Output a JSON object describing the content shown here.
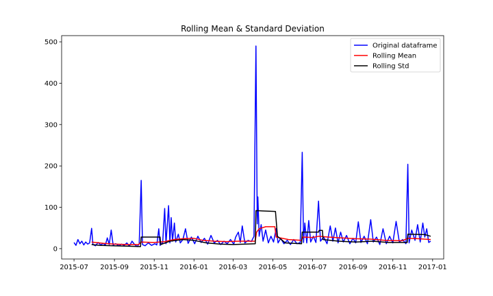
{
  "chart_data": {
    "type": "line",
    "title": "Rolling Mean & Standard Deviation",
    "xlabel": "",
    "ylabel": "",
    "xlim": [
      "2015-06-12",
      "2017-01-18"
    ],
    "ylim": [
      -25,
      515
    ],
    "x_ticks": [
      "2015-07-01",
      "2015-09-01",
      "2015-11-01",
      "2016-01-01",
      "2016-03-01",
      "2016-05-01",
      "2016-07-01",
      "2016-09-01",
      "2016-11-01",
      "2017-01-01"
    ],
    "x_tick_labels": [
      "2015-07",
      "2015-09",
      "2015-11",
      "2016-01",
      "2016-03",
      "2016-05",
      "2016-07",
      "2016-09",
      "2016-11",
      "2017-01"
    ],
    "y_ticks": [
      0,
      100,
      200,
      300,
      400,
      500
    ],
    "y_tick_labels": [
      "0",
      "100",
      "200",
      "300",
      "400",
      "500"
    ],
    "grid": false,
    "legend_position": "top-right",
    "series": [
      {
        "name": "Original dataframe",
        "color": "#0000ff",
        "points": [
          [
            "2015-07-01",
            15
          ],
          [
            "2015-07-04",
            8
          ],
          [
            "2015-07-07",
            22
          ],
          [
            "2015-07-10",
            12
          ],
          [
            "2015-07-13",
            18
          ],
          [
            "2015-07-16",
            9
          ],
          [
            "2015-07-19",
            16
          ],
          [
            "2015-07-22",
            11
          ],
          [
            "2015-07-25",
            14
          ],
          [
            "2015-07-28",
            49
          ],
          [
            "2015-07-30",
            10
          ],
          [
            "2015-08-03",
            7
          ],
          [
            "2015-08-07",
            15
          ],
          [
            "2015-08-11",
            9
          ],
          [
            "2015-08-15",
            13
          ],
          [
            "2015-08-18",
            8
          ],
          [
            "2015-08-21",
            26
          ],
          [
            "2015-08-24",
            10
          ],
          [
            "2015-08-27",
            45
          ],
          [
            "2015-08-30",
            9
          ],
          [
            "2015-09-03",
            12
          ],
          [
            "2015-09-08",
            7
          ],
          [
            "2015-09-12",
            11
          ],
          [
            "2015-09-16",
            8
          ],
          [
            "2015-09-20",
            14
          ],
          [
            "2015-09-24",
            6
          ],
          [
            "2015-09-28",
            18
          ],
          [
            "2015-10-02",
            10
          ],
          [
            "2015-10-06",
            5
          ],
          [
            "2015-10-09",
            12
          ],
          [
            "2015-10-12",
            165
          ],
          [
            "2015-10-14",
            10
          ],
          [
            "2015-10-18",
            7
          ],
          [
            "2015-10-23",
            14
          ],
          [
            "2015-10-28",
            8
          ],
          [
            "2015-11-02",
            12
          ],
          [
            "2015-11-05",
            9
          ],
          [
            "2015-11-08",
            48
          ],
          [
            "2015-11-10",
            8
          ],
          [
            "2015-11-14",
            15
          ],
          [
            "2015-11-17",
            97
          ],
          [
            "2015-11-19",
            12
          ],
          [
            "2015-11-23",
            104
          ],
          [
            "2015-11-25",
            14
          ],
          [
            "2015-11-27",
            75
          ],
          [
            "2015-11-29",
            18
          ],
          [
            "2015-12-02",
            62
          ],
          [
            "2015-12-04",
            16
          ],
          [
            "2015-12-08",
            35
          ],
          [
            "2015-12-11",
            14
          ],
          [
            "2015-12-15",
            22
          ],
          [
            "2015-12-19",
            48
          ],
          [
            "2015-12-23",
            13
          ],
          [
            "2015-12-28",
            28
          ],
          [
            "2016-01-02",
            12
          ],
          [
            "2016-01-07",
            30
          ],
          [
            "2016-01-12",
            15
          ],
          [
            "2016-01-17",
            25
          ],
          [
            "2016-01-22",
            11
          ],
          [
            "2016-01-27",
            32
          ],
          [
            "2016-02-01",
            14
          ],
          [
            "2016-02-06",
            20
          ],
          [
            "2016-02-11",
            10
          ],
          [
            "2016-02-16",
            18
          ],
          [
            "2016-02-21",
            12
          ],
          [
            "2016-02-26",
            22
          ],
          [
            "2016-03-02",
            11
          ],
          [
            "2016-03-05",
            28
          ],
          [
            "2016-03-09",
            40
          ],
          [
            "2016-03-12",
            15
          ],
          [
            "2016-03-15",
            55
          ],
          [
            "2016-03-19",
            14
          ],
          [
            "2016-03-24",
            20
          ],
          [
            "2016-03-29",
            17
          ],
          [
            "2016-04-02",
            30
          ],
          [
            "2016-04-05",
            490
          ],
          [
            "2016-04-07",
            60
          ],
          [
            "2016-04-08",
            125
          ],
          [
            "2016-04-10",
            30
          ],
          [
            "2016-04-13",
            58
          ],
          [
            "2016-04-16",
            18
          ],
          [
            "2016-04-20",
            45
          ],
          [
            "2016-04-24",
            14
          ],
          [
            "2016-04-28",
            30
          ],
          [
            "2016-05-02",
            16
          ],
          [
            "2016-05-06",
            48
          ],
          [
            "2016-05-09",
            14
          ],
          [
            "2016-05-13",
            25
          ],
          [
            "2016-05-18",
            12
          ],
          [
            "2016-05-23",
            20
          ],
          [
            "2016-05-28",
            10
          ],
          [
            "2016-06-02",
            22
          ],
          [
            "2016-06-07",
            12
          ],
          [
            "2016-06-12",
            15
          ],
          [
            "2016-06-15",
            233
          ],
          [
            "2016-06-17",
            15
          ],
          [
            "2016-06-19",
            62
          ],
          [
            "2016-06-22",
            14
          ],
          [
            "2016-06-25",
            68
          ],
          [
            "2016-06-28",
            16
          ],
          [
            "2016-07-02",
            30
          ],
          [
            "2016-07-06",
            15
          ],
          [
            "2016-07-10",
            115
          ],
          [
            "2016-07-13",
            18
          ],
          [
            "2016-07-18",
            28
          ],
          [
            "2016-07-23",
            12
          ],
          [
            "2016-07-28",
            55
          ],
          [
            "2016-08-01",
            18
          ],
          [
            "2016-08-05",
            50
          ],
          [
            "2016-08-09",
            14
          ],
          [
            "2016-08-13",
            40
          ],
          [
            "2016-08-17",
            16
          ],
          [
            "2016-08-22",
            32
          ],
          [
            "2016-08-27",
            12
          ],
          [
            "2016-09-01",
            25
          ],
          [
            "2016-09-05",
            14
          ],
          [
            "2016-09-09",
            65
          ],
          [
            "2016-09-13",
            15
          ],
          [
            "2016-09-18",
            30
          ],
          [
            "2016-09-23",
            12
          ],
          [
            "2016-09-28",
            70
          ],
          [
            "2016-10-02",
            16
          ],
          [
            "2016-10-07",
            28
          ],
          [
            "2016-10-12",
            10
          ],
          [
            "2016-10-17",
            48
          ],
          [
            "2016-10-22",
            12
          ],
          [
            "2016-10-27",
            30
          ],
          [
            "2016-11-01",
            14
          ],
          [
            "2016-11-06",
            66
          ],
          [
            "2016-11-11",
            16
          ],
          [
            "2016-11-16",
            22
          ],
          [
            "2016-11-21",
            12
          ],
          [
            "2016-11-24",
            204
          ],
          [
            "2016-11-26",
            14
          ],
          [
            "2016-11-30",
            45
          ],
          [
            "2016-12-05",
            20
          ],
          [
            "2016-12-09",
            58
          ],
          [
            "2016-12-13",
            16
          ],
          [
            "2016-12-17",
            62
          ],
          [
            "2016-12-20",
            28
          ],
          [
            "2016-12-23",
            48
          ],
          [
            "2016-12-26",
            15
          ],
          [
            "2016-12-29",
            18
          ]
        ]
      },
      {
        "name": "Rolling Mean",
        "color": "#ff0000",
        "points": [
          [
            "2015-07-28",
            16
          ],
          [
            "2015-08-15",
            13
          ],
          [
            "2015-09-01",
            11
          ],
          [
            "2015-09-20",
            10
          ],
          [
            "2015-10-08",
            10
          ],
          [
            "2015-10-12",
            16
          ],
          [
            "2015-11-01",
            15
          ],
          [
            "2015-11-17",
            17
          ],
          [
            "2015-12-01",
            22
          ],
          [
            "2015-12-15",
            24
          ],
          [
            "2016-01-01",
            25
          ],
          [
            "2016-01-15",
            20
          ],
          [
            "2016-02-01",
            18
          ],
          [
            "2016-02-20",
            17
          ],
          [
            "2016-03-10",
            18
          ],
          [
            "2016-04-04",
            18
          ],
          [
            "2016-04-06",
            40
          ],
          [
            "2016-04-10",
            48
          ],
          [
            "2016-04-20",
            53
          ],
          [
            "2016-05-04",
            53
          ],
          [
            "2016-05-06",
            28
          ],
          [
            "2016-05-25",
            22
          ],
          [
            "2016-06-14",
            20
          ],
          [
            "2016-06-16",
            28
          ],
          [
            "2016-07-01",
            27
          ],
          [
            "2016-07-10",
            30
          ],
          [
            "2016-07-25",
            28
          ],
          [
            "2016-08-15",
            26
          ],
          [
            "2016-09-05",
            24
          ],
          [
            "2016-09-28",
            23
          ],
          [
            "2016-10-20",
            20
          ],
          [
            "2016-11-15",
            19
          ],
          [
            "2016-11-24",
            25
          ],
          [
            "2016-12-10",
            24
          ],
          [
            "2016-12-29",
            22
          ]
        ]
      },
      {
        "name": "Rolling Std",
        "color": "#000000",
        "points": [
          [
            "2015-07-28",
            10
          ],
          [
            "2015-08-10",
            8
          ],
          [
            "2015-09-01",
            7
          ],
          [
            "2015-09-20",
            6
          ],
          [
            "2015-10-11",
            5
          ],
          [
            "2015-10-12",
            28
          ],
          [
            "2015-11-10",
            28
          ],
          [
            "2015-11-11",
            10
          ],
          [
            "2015-11-25",
            18
          ],
          [
            "2015-12-15",
            22
          ],
          [
            "2016-01-01",
            20
          ],
          [
            "2016-01-20",
            14
          ],
          [
            "2016-02-10",
            11
          ],
          [
            "2016-03-01",
            10
          ],
          [
            "2016-04-04",
            12
          ],
          [
            "2016-04-05",
            92
          ],
          [
            "2016-05-05",
            90
          ],
          [
            "2016-05-08",
            30
          ],
          [
            "2016-05-20",
            14
          ],
          [
            "2016-06-14",
            12
          ],
          [
            "2016-06-15",
            40
          ],
          [
            "2016-07-10",
            40
          ],
          [
            "2016-07-11",
            44
          ],
          [
            "2016-07-16",
            44
          ],
          [
            "2016-07-17",
            22
          ],
          [
            "2016-08-10",
            18
          ],
          [
            "2016-09-05",
            16
          ],
          [
            "2016-10-01",
            18
          ],
          [
            "2016-10-25",
            15
          ],
          [
            "2016-11-23",
            15
          ],
          [
            "2016-11-24",
            35
          ],
          [
            "2016-12-20",
            34
          ],
          [
            "2016-12-29",
            30
          ]
        ]
      }
    ]
  }
}
